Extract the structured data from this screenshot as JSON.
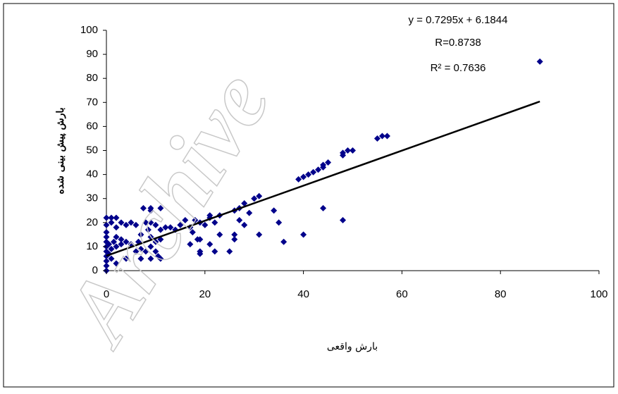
{
  "chart_data": {
    "type": "scatter",
    "watermark": "Archive",
    "y_label": "بارش پیش بینی شده",
    "x_label": "بارش واقعی",
    "annotations": [
      "y = 0.7295x + 6.1844",
      "R=0.8738",
      "R² = 0.7636"
    ],
    "trendline": {
      "slope": 0.7295,
      "intercept": 6.1844,
      "x_range": [
        0,
        88
      ]
    },
    "color": "#00008b",
    "x": [
      0,
      0,
      0,
      0,
      0,
      0,
      0,
      0,
      0,
      0,
      0,
      0.5,
      0.5,
      1,
      1,
      1,
      1,
      1.5,
      2,
      2,
      2,
      2,
      2,
      3,
      3,
      3,
      4,
      4,
      4,
      5,
      5,
      6,
      6,
      6.5,
      7,
      7,
      7,
      7.5,
      8,
      8,
      8.5,
      9,
      9,
      9,
      9,
      9,
      9,
      10,
      10,
      10,
      10.5,
      11,
      11,
      11,
      11,
      12,
      13,
      14,
      15,
      16,
      17,
      17,
      17.5,
      18,
      18.5,
      19,
      19,
      19,
      19,
      20,
      21,
      21,
      21,
      22,
      22,
      23,
      23,
      25,
      26,
      26,
      26,
      27,
      27,
      28,
      28,
      29,
      30,
      31,
      31,
      34,
      35,
      36,
      39,
      40,
      40,
      41,
      42,
      43,
      44,
      44,
      44,
      45,
      48,
      48,
      48,
      49,
      50,
      55,
      56,
      57,
      88
    ],
    "values": [
      0,
      2,
      4,
      6,
      8,
      10,
      12,
      14,
      16,
      19,
      22,
      11,
      7,
      22,
      20,
      9,
      5,
      12,
      22,
      18,
      14,
      10,
      3,
      20,
      13,
      11,
      19,
      12,
      5,
      20,
      11,
      19,
      8,
      12,
      15,
      9,
      5,
      26,
      20,
      8,
      17,
      25,
      26,
      20,
      14,
      10,
      5,
      19,
      8,
      12,
      6,
      26,
      17,
      13,
      5,
      18,
      18,
      17,
      19,
      21,
      11,
      18,
      16,
      21,
      13,
      8,
      7,
      20,
      13,
      19,
      23,
      22,
      11,
      20,
      8,
      23,
      15,
      8,
      13,
      15,
      25,
      26,
      21,
      28,
      19,
      24,
      30,
      31,
      15,
      25,
      20,
      12,
      38,
      39,
      15,
      40,
      41,
      42,
      43,
      26,
      44,
      45,
      48,
      49,
      21,
      50,
      50,
      55,
      56,
      56,
      87
    ],
    "xlim": [
      0,
      100
    ],
    "xticks": [
      0,
      20,
      40,
      60,
      80,
      100
    ],
    "ylim": [
      0,
      100
    ],
    "yticks": [
      0,
      10,
      20,
      30,
      40,
      50,
      60,
      70,
      80,
      90,
      100
    ]
  }
}
